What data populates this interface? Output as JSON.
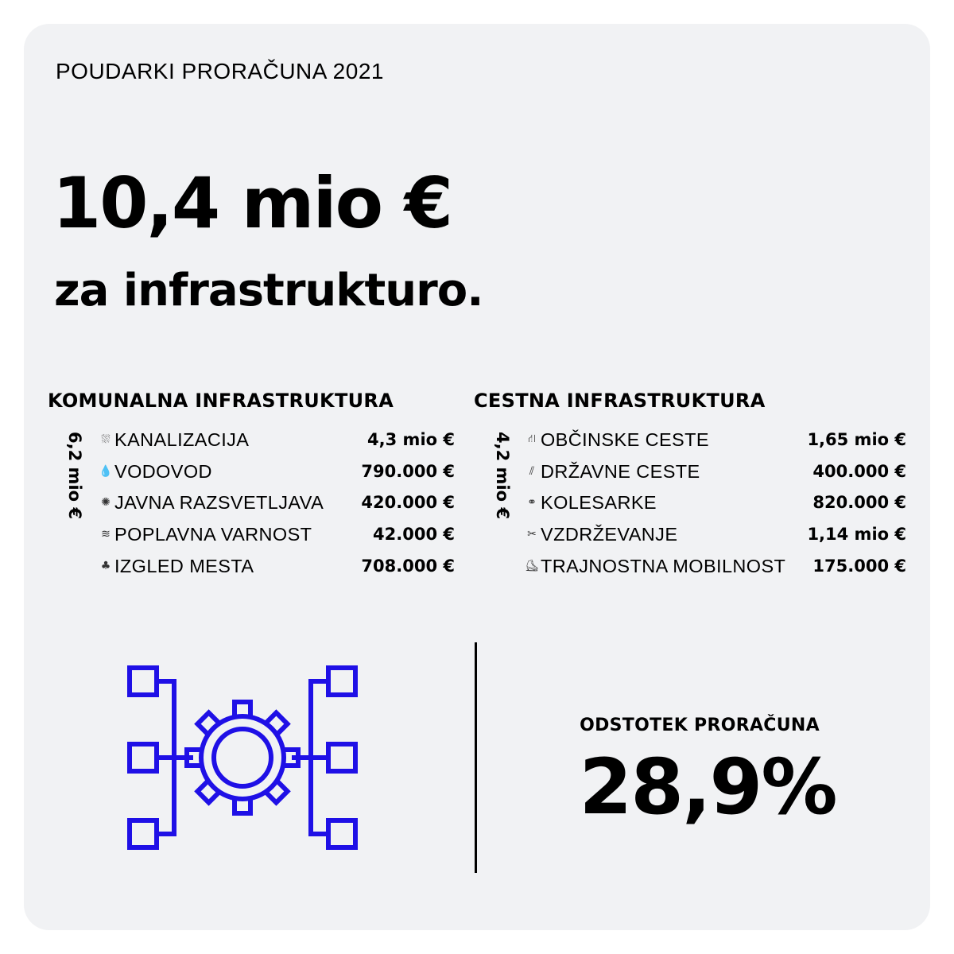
{
  "header": {
    "eyebrow": "POUDARKI PRORAČUNA 2021"
  },
  "hero": {
    "amount": "10,4 mio €",
    "subtitle": "za infrastrukturo."
  },
  "komunalna": {
    "title": "KOMUNALNA INFRASTRUKTURA",
    "total": "6,2 mio €",
    "items": [
      {
        "icon": "sewer-icon",
        "label": "KANALIZACIJA",
        "amount": "4,3 mio €"
      },
      {
        "icon": "water-drop-icon",
        "label": "VODOVOD",
        "amount": "790.000 €"
      },
      {
        "icon": "lightbulb-icon",
        "label": "JAVNA RAZSVETLJAVA",
        "amount": "420.000 €"
      },
      {
        "icon": "waves-icon",
        "label": "POPLAVNA VARNOST",
        "amount": "42.000 €"
      },
      {
        "icon": "tree-icon",
        "label": "IZGLED MESTA",
        "amount": "708.000 €"
      }
    ]
  },
  "cestna": {
    "title": "CESTNA INFRASTRUKTURA",
    "total": "4,2 mio €",
    "items": [
      {
        "icon": "road-icon",
        "label": "OBČINSKE CESTE",
        "amount": "1,65 mio €"
      },
      {
        "icon": "highway-icon",
        "label": "DRŽAVNE CESTE",
        "amount": "400.000 €"
      },
      {
        "icon": "bicycle-icon",
        "label": "KOLESARKE",
        "amount": "820.000 €"
      },
      {
        "icon": "tools-icon",
        "label": "VZDRŽEVANJE",
        "amount": "1,14 mio €"
      },
      {
        "icon": "scooter-icon",
        "label": "TRAJNOSTNA MOBILNOST",
        "amount": "175.000 €"
      }
    ]
  },
  "share": {
    "label": "ODSTOTEK PRORAČUNA",
    "value": "28,9%"
  },
  "colors": {
    "card": "#f1f2f4",
    "illustration": "#1f10e6",
    "text": "#000000"
  }
}
